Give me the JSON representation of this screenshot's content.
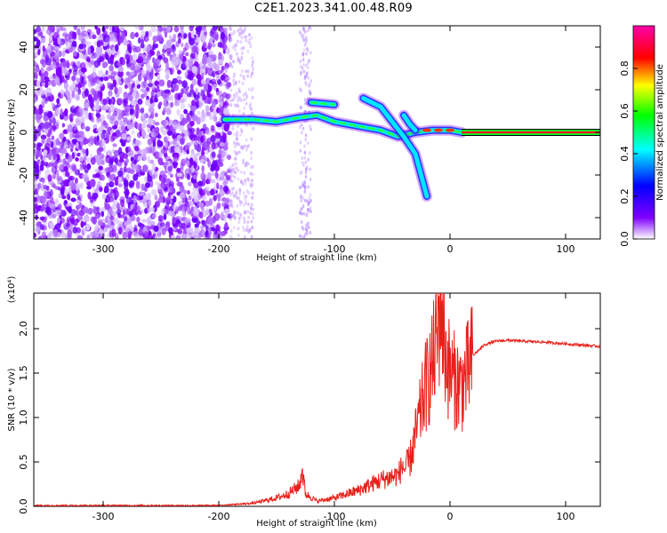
{
  "title": "C2E1.2023.341.00.48.R09",
  "chart_data": [
    {
      "type": "heatmap",
      "xlabel": "Height of straight line (km)",
      "ylabel": "Frequency (Hz)",
      "xlim": [
        -360,
        130
      ],
      "ylim": [
        -50,
        50
      ],
      "xticks": [
        -300,
        -200,
        -100,
        0,
        100
      ],
      "yticks": [
        -40,
        -20,
        0,
        20,
        40
      ],
      "colorbar": {
        "label": "Normalized spectral amplitude",
        "range": [
          0.0,
          1.0
        ],
        "ticks": [
          "0.0",
          "0.2",
          "0.4",
          "0.6",
          "0.8"
        ],
        "colors": [
          "#ffffff",
          "#7f00ff",
          "#0000ff",
          "#00ffff",
          "#00ff00",
          "#ffff00",
          "#ff0000",
          "#ff00aa"
        ]
      },
      "features": {
        "noise_region_x": [
          -360,
          -190
        ],
        "noise_fringe_x": [
          -190,
          -170
        ],
        "noise_stripe_x": [
          -130,
          -120
        ],
        "main_trace": [
          [
            -195,
            6
          ],
          [
            -170,
            6
          ],
          [
            -150,
            5
          ],
          [
            -130,
            7
          ],
          [
            -115,
            8
          ],
          [
            -100,
            5
          ],
          [
            -80,
            3
          ],
          [
            -60,
            1
          ],
          [
            -45,
            -2
          ],
          [
            -30,
            0
          ],
          [
            -15,
            1
          ],
          [
            0,
            1
          ],
          [
            10,
            0
          ]
        ],
        "upper_trace": [
          [
            -120,
            14
          ],
          [
            -100,
            13
          ]
        ],
        "falling_branch": [
          [
            -75,
            16
          ],
          [
            -60,
            12
          ],
          [
            -50,
            5
          ],
          [
            -40,
            -2
          ],
          [
            -30,
            -10
          ],
          [
            -25,
            -20
          ],
          [
            -20,
            -30
          ]
        ],
        "side_branch": [
          [
            -40,
            8
          ],
          [
            -35,
            4
          ],
          [
            -30,
            1
          ]
        ],
        "steady_line": {
          "x": [
            10,
            130
          ],
          "y": 0
        }
      }
    },
    {
      "type": "line",
      "xlabel": "Height of straight line (km)",
      "ylabel": "SNR (10 * v/v)",
      "multiplier": "(x10⁴)",
      "xlim": [
        -360,
        130
      ],
      "ylim": [
        0.0,
        2.4
      ],
      "xticks": [
        -300,
        -200,
        -100,
        0,
        100
      ],
      "yticks": [
        "0.0",
        "0.5",
        "1.0",
        "1.5",
        "2.0"
      ],
      "series": [
        {
          "color": "#e8201a",
          "x": [
            -360,
            -300,
            -200,
            -170,
            -150,
            -140,
            -130,
            -128,
            -125,
            -115,
            -100,
            -80,
            -60,
            -45,
            -35,
            -28,
            -22,
            -15,
            -10,
            -8,
            -5,
            0,
            5,
            10,
            15,
            20,
            30,
            40,
            50,
            60,
            80,
            100,
            130
          ],
          "y": [
            0.01,
            0.01,
            0.01,
            0.03,
            0.08,
            0.12,
            0.2,
            0.36,
            0.12,
            0.05,
            0.08,
            0.15,
            0.25,
            0.3,
            0.5,
            0.9,
            1.3,
            1.6,
            2.0,
            2.4,
            1.8,
            1.5,
            1.4,
            1.35,
            1.5,
            1.7,
            1.82,
            1.86,
            1.87,
            1.86,
            1.85,
            1.83,
            1.8
          ]
        }
      ]
    }
  ]
}
